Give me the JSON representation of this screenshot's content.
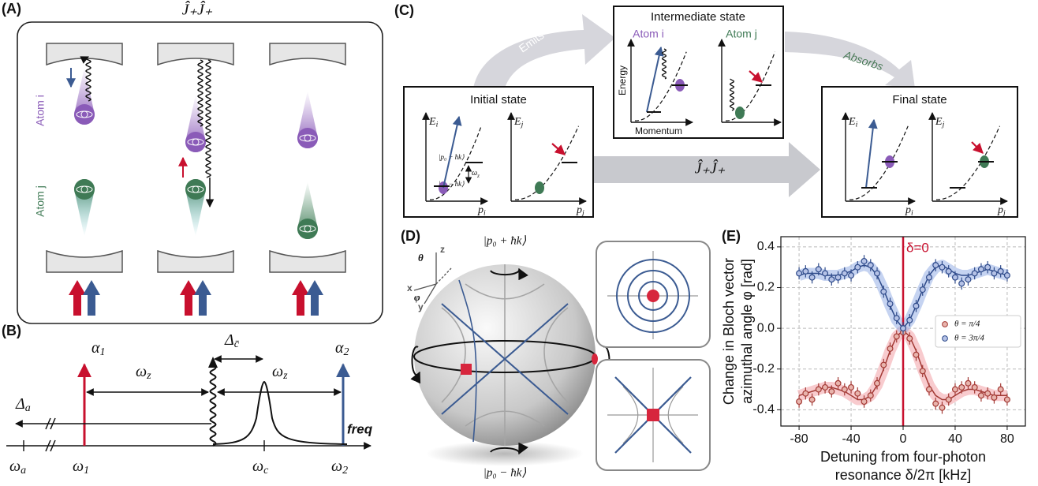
{
  "panel_labels": [
    "(A)",
    "(B)",
    "(C)",
    "(D)",
    "(E)"
  ],
  "panel_a": {
    "operator": "Ĵ₊Ĵ₊",
    "atom_i": "Atom i",
    "atom_j": "Atom j"
  },
  "panel_b": {
    "alpha_1": {
      "base": "α",
      "sub": "1"
    },
    "alpha_2": {
      "base": "α",
      "sub": "2"
    },
    "delta_a": {
      "base": "Δ",
      "sub": "a"
    },
    "delta_c": {
      "base": "Δ",
      "sub": "c̄"
    },
    "omega_z": {
      "base": "ω",
      "sub": "z"
    },
    "freq": "freq",
    "omega_a": {
      "base": "ω",
      "sub": "a"
    },
    "omega_1": {
      "base": "ω",
      "sub": "1"
    },
    "omega_c": {
      "base": "ω",
      "sub": "c"
    },
    "omega_2": {
      "base": "ω",
      "sub": "2"
    }
  },
  "panel_c": {
    "emits": "Emits",
    "absorbs": "Absorbs",
    "intermediate": "Intermediate state",
    "atom_i": "Atom i",
    "atom_j": "Atom j",
    "energy": "Energy",
    "momentum": "Momentum",
    "initial": "Initial state",
    "final": "Final state",
    "e_i": {
      "base": "E",
      "sub": "i"
    },
    "e_j": {
      "base": "E",
      "sub": "j"
    },
    "p_i": {
      "base": "p",
      "sub": "i"
    },
    "p_j": {
      "base": "p",
      "sub": "j"
    },
    "ket_plus": "|p₀ + ħk⟩",
    "ket_minus": "|p₀ − ħk⟩",
    "omega_z": {
      "base": "ω",
      "sub": "z"
    },
    "operator": "Ĵ₊Ĵ₊"
  },
  "panel_d": {
    "ket_plus": "|p₀ + ħk⟩",
    "ket_minus": "|p₀ − ħk⟩",
    "theta": "θ",
    "phi": "φ",
    "x": "x",
    "y": "y",
    "z": "z"
  },
  "panel_e": {
    "type": "scatter",
    "ylabel": [
      "Change in Bloch vector",
      "azimuthal angle φ [rad]"
    ],
    "xlabel": [
      "Detuning from four-photon",
      "resonance δ/2π [kHz]"
    ],
    "xlim": [
      -94,
      94
    ],
    "ylim": [
      -0.48,
      0.45
    ],
    "xticks": [
      -80,
      -40,
      0,
      40,
      80
    ],
    "yticks": [
      -0.4,
      -0.2,
      {
        "value": 0,
        "label": "0.0"
      },
      0.2,
      0.4
    ],
    "grid": true,
    "legend": "center right",
    "marker_line": {
      "value": 0,
      "label": "δ=0",
      "color": "#c8102e"
    },
    "x": [
      -80,
      -75,
      -70,
      -65,
      -60,
      -55,
      -50,
      -45,
      -40,
      -35,
      -30,
      -25,
      -20,
      -15,
      -10,
      -5,
      0,
      5,
      10,
      15,
      20,
      25,
      30,
      35,
      40,
      45,
      50,
      55,
      60,
      65,
      70,
      75,
      80
    ],
    "series": [
      {
        "name": "θ = π/4",
        "color": "#a33a35",
        "fill": "#e8b4ad",
        "band": "#f4a9ae",
        "values": [
          -0.36,
          -0.32,
          -0.35,
          -0.3,
          -0.29,
          -0.31,
          -0.27,
          -0.3,
          -0.29,
          -0.32,
          -0.36,
          -0.33,
          -0.27,
          -0.18,
          -0.1,
          -0.04,
          -0.02,
          -0.05,
          -0.13,
          -0.21,
          -0.3,
          -0.37,
          -0.39,
          -0.35,
          -0.3,
          -0.29,
          -0.27,
          -0.29,
          -0.33,
          -0.32,
          -0.34,
          -0.3,
          -0.35
        ],
        "errors": [
          0.03,
          0.03,
          0.03,
          0.03,
          0.03,
          0.03,
          0.03,
          0.03,
          0.03,
          0.03,
          0.03,
          0.03,
          0.03,
          0.03,
          0.03,
          0.03,
          0.03,
          0.03,
          0.03,
          0.03,
          0.03,
          0.03,
          0.03,
          0.03,
          0.03,
          0.03,
          0.03,
          0.03,
          0.03,
          0.03,
          0.03,
          0.03,
          0.03
        ],
        "fit": [
          -0.33,
          -0.32,
          -0.31,
          -0.3,
          -0.29,
          -0.29,
          -0.3,
          -0.31,
          -0.33,
          -0.35,
          -0.35,
          -0.33,
          -0.28,
          -0.2,
          -0.11,
          -0.04,
          -0.01,
          -0.04,
          -0.11,
          -0.2,
          -0.28,
          -0.33,
          -0.35,
          -0.35,
          -0.33,
          -0.31,
          -0.3,
          -0.3,
          -0.31,
          -0.32,
          -0.33,
          -0.33,
          -0.33
        ]
      },
      {
        "name": "θ = 3π/4",
        "color": "#2e4a8a",
        "fill": "#b5c2e6",
        "band": "#9fb6e8",
        "values": [
          0.27,
          0.28,
          0.25,
          0.29,
          0.27,
          0.24,
          0.25,
          0.27,
          0.26,
          0.3,
          0.33,
          0.31,
          0.27,
          0.18,
          0.12,
          0.05,
          0.0,
          0.04,
          0.11,
          0.19,
          0.25,
          0.31,
          0.3,
          0.28,
          0.25,
          0.22,
          0.24,
          0.27,
          0.29,
          0.3,
          0.27,
          0.28,
          0.26
        ],
        "errors": [
          0.03,
          0.03,
          0.03,
          0.03,
          0.03,
          0.03,
          0.03,
          0.03,
          0.03,
          0.03,
          0.03,
          0.03,
          0.03,
          0.03,
          0.03,
          0.03,
          0.03,
          0.03,
          0.03,
          0.03,
          0.03,
          0.03,
          0.03,
          0.03,
          0.03,
          0.03,
          0.03,
          0.03,
          0.03,
          0.03,
          0.03,
          0.03,
          0.03
        ],
        "fit": [
          0.26,
          0.27,
          0.27,
          0.27,
          0.26,
          0.26,
          0.26,
          0.27,
          0.28,
          0.3,
          0.31,
          0.3,
          0.26,
          0.19,
          0.11,
          0.04,
          0.0,
          0.04,
          0.11,
          0.19,
          0.26,
          0.3,
          0.31,
          0.29,
          0.27,
          0.26,
          0.26,
          0.27,
          0.28,
          0.29,
          0.28,
          0.27,
          0.26
        ]
      }
    ]
  }
}
